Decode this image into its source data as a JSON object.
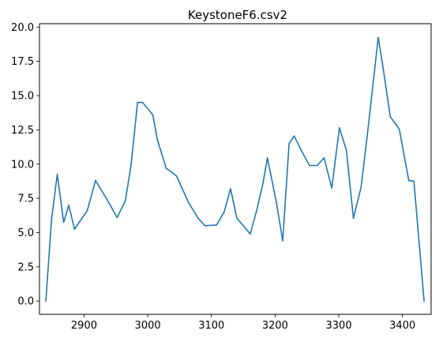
{
  "chart_data": {
    "type": "line",
    "title": "KeystoneF6.csv2",
    "xlabel": "",
    "ylabel": "",
    "xlim": [
      2830,
      3445
    ],
    "ylim": [
      -0.97,
      20.25
    ],
    "xticks": [
      2900,
      3000,
      3100,
      3200,
      3300,
      3400
    ],
    "xtick_labels": [
      "2900",
      "3000",
      "3100",
      "3200",
      "3300",
      "3400"
    ],
    "yticks": [
      0.0,
      2.5,
      5.0,
      7.5,
      10.0,
      12.5,
      15.0,
      17.5,
      20.0
    ],
    "ytick_labels": [
      "0.0",
      "2.5",
      "5.0",
      "7.5",
      "10.0",
      "12.5",
      "15.0",
      "17.5",
      "20.0"
    ],
    "grid": false,
    "line_color": "#1f77b4",
    "series": [
      {
        "x": [
          2840,
          2849,
          2858,
          2868,
          2876,
          2885,
          2905,
          2918,
          2935,
          2952,
          2965,
          2974,
          2984,
          2992,
          3008,
          3015,
          3029,
          3045,
          3064,
          3079,
          3090,
          3108,
          3120,
          3130,
          3140,
          3161,
          3171,
          3181,
          3188,
          3202,
          3212,
          3222,
          3230,
          3240,
          3254,
          3266,
          3277,
          3289,
          3301,
          3312,
          3323,
          3335,
          3346,
          3362,
          3370,
          3381,
          3395,
          3410,
          3418,
          3434
        ],
        "y": [
          0.0,
          6.0,
          9.25,
          5.75,
          7.0,
          5.25,
          6.6,
          8.8,
          7.5,
          6.1,
          7.35,
          10.0,
          14.5,
          14.5,
          13.6,
          11.8,
          9.7,
          9.15,
          7.2,
          6.05,
          5.5,
          5.55,
          6.5,
          8.2,
          6.05,
          4.9,
          6.6,
          8.6,
          10.45,
          7.2,
          4.4,
          11.5,
          12.05,
          11.1,
          9.9,
          9.9,
          10.45,
          8.25,
          12.65,
          11.0,
          6.05,
          8.3,
          12.6,
          19.25,
          16.9,
          13.45,
          12.55,
          8.8,
          8.75,
          0.0
        ]
      }
    ]
  }
}
